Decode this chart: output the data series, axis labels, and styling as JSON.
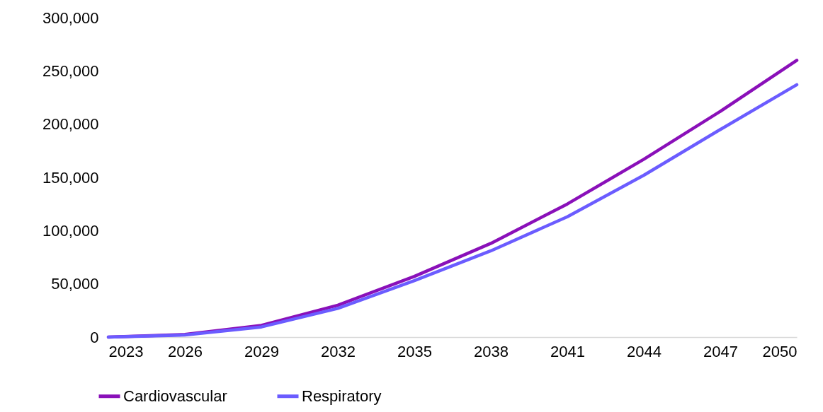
{
  "chart_data": {
    "type": "line",
    "x": [
      2023,
      2026,
      2029,
      2032,
      2035,
      2038,
      2041,
      2044,
      2047,
      2050
    ],
    "series": [
      {
        "name": "Cardiovascular",
        "color": "#8a10b9",
        "values": [
          0,
          2500,
          11000,
          30000,
          57000,
          88000,
          125000,
          167000,
          212000,
          260000
        ]
      },
      {
        "name": "Respiratory",
        "color": "#6b5cff",
        "values": [
          0,
          2000,
          9500,
          27000,
          53000,
          81000,
          113000,
          152000,
          195000,
          237000
        ]
      }
    ],
    "xlim": [
      2023,
      2050
    ],
    "xticks": [
      2023,
      2026,
      2029,
      2032,
      2035,
      2038,
      2041,
      2044,
      2047,
      2050
    ],
    "ylim": [
      0,
      300000
    ],
    "yticks": [
      0,
      {
        "value": 50000,
        "label": "50,000"
      },
      {
        "value": 100000,
        "label": "100,000"
      },
      {
        "value": 150000,
        "label": "150,000"
      },
      {
        "value": 200000,
        "label": "200,000"
      },
      {
        "value": 250000,
        "label": "250,000"
      },
      {
        "value": 300000,
        "label": "300,000"
      }
    ],
    "grid": false,
    "legend": "bottom",
    "marker": "none",
    "line_style": "solid"
  }
}
